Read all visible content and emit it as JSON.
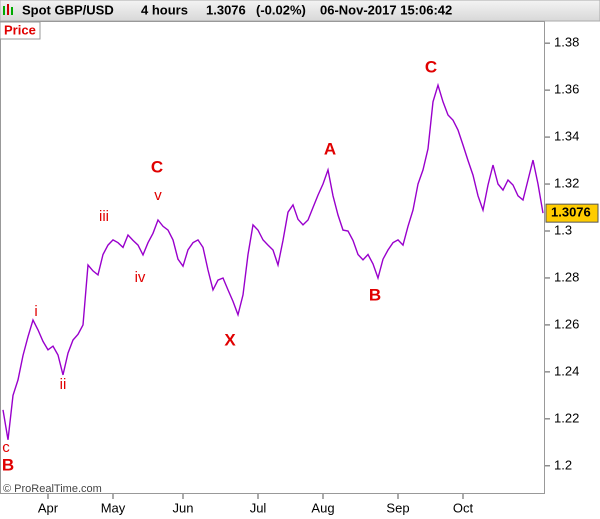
{
  "chart_data": {
    "type": "line",
    "symbol": "Spot GBP/USD",
    "timeframe": "4 hours",
    "last_price": "1.3076",
    "change": "(-0.02%)",
    "datetime": "06-Nov-2017 15:06:42",
    "copyright": "© ProRealTime.com",
    "categories": [
      null,
      null,
      null,
      null,
      null,
      null,
      null,
      null,
      null,
      "Apr",
      null,
      null,
      null,
      null,
      null,
      null,
      null,
      null,
      null,
      null,
      null,
      null,
      "May",
      null,
      null,
      null,
      null,
      null,
      null,
      null,
      null,
      null,
      null,
      null,
      null,
      null,
      "Jun",
      null,
      null,
      null,
      null,
      null,
      null,
      null,
      null,
      null,
      null,
      null,
      null,
      null,
      null,
      "Jul",
      null,
      null,
      null,
      null,
      null,
      null,
      null,
      null,
      null,
      null,
      null,
      null,
      "Aug",
      null,
      null,
      null,
      null,
      null,
      null,
      null,
      null,
      null,
      null,
      null,
      null,
      null,
      null,
      "Sep",
      null,
      null,
      null,
      null,
      null,
      null,
      null,
      null,
      null,
      null,
      null,
      null,
      "Oct",
      null,
      null,
      null,
      null,
      null,
      null,
      null,
      null,
      null,
      null,
      null,
      null,
      null,
      null,
      null,
      null
    ],
    "series": [
      {
        "name": "Price",
        "color": "#9900cc",
        "values": [
          1.2238,
          1.2111,
          1.23,
          1.2366,
          1.247,
          1.255,
          1.2621,
          1.2579,
          1.253,
          1.2494,
          1.251,
          1.2472,
          1.2387,
          1.248,
          1.2536,
          1.256,
          1.26,
          1.2855,
          1.283,
          1.2813,
          1.29,
          1.294,
          1.2962,
          1.295,
          1.293,
          1.2983,
          1.296,
          1.294,
          1.2898,
          1.295,
          1.299,
          1.3047,
          1.302,
          1.3004,
          1.2962,
          1.288,
          1.285,
          1.292,
          1.295,
          1.2962,
          1.293,
          1.2834,
          1.2749,
          1.2791,
          1.28,
          1.2749,
          1.27,
          1.2643,
          1.2728,
          1.29,
          1.3026,
          1.3004,
          1.2962,
          1.294,
          1.2919,
          1.2855,
          1.296,
          1.308,
          1.3111,
          1.305,
          1.3026,
          1.3047,
          1.31,
          1.3153,
          1.32,
          1.326,
          1.315,
          1.3068,
          1.3004,
          1.3,
          1.296,
          1.29,
          1.2877,
          1.29,
          1.286,
          1.28,
          1.288,
          1.2919,
          1.295,
          1.2962,
          1.294,
          1.302,
          1.3089,
          1.32,
          1.326,
          1.335,
          1.355,
          1.3621,
          1.355,
          1.3494,
          1.3472,
          1.343,
          1.3366,
          1.33,
          1.3238,
          1.315,
          1.3089,
          1.3196,
          1.3281,
          1.32,
          1.3174,
          1.3217,
          1.3196,
          1.315,
          1.3132,
          1.3217,
          1.3302,
          1.32,
          1.3076
        ]
      }
    ],
    "ylim": [
      1.188,
      1.389
    ],
    "yticks": [
      1.2,
      1.22,
      1.24,
      1.26,
      1.28,
      1.3,
      1.32,
      1.34,
      1.36,
      1.38
    ],
    "annotations": [
      "c",
      "B",
      "i",
      "ii",
      "iii",
      "iv",
      "v",
      "C",
      "X",
      "A",
      "B",
      "C"
    ]
  }
}
